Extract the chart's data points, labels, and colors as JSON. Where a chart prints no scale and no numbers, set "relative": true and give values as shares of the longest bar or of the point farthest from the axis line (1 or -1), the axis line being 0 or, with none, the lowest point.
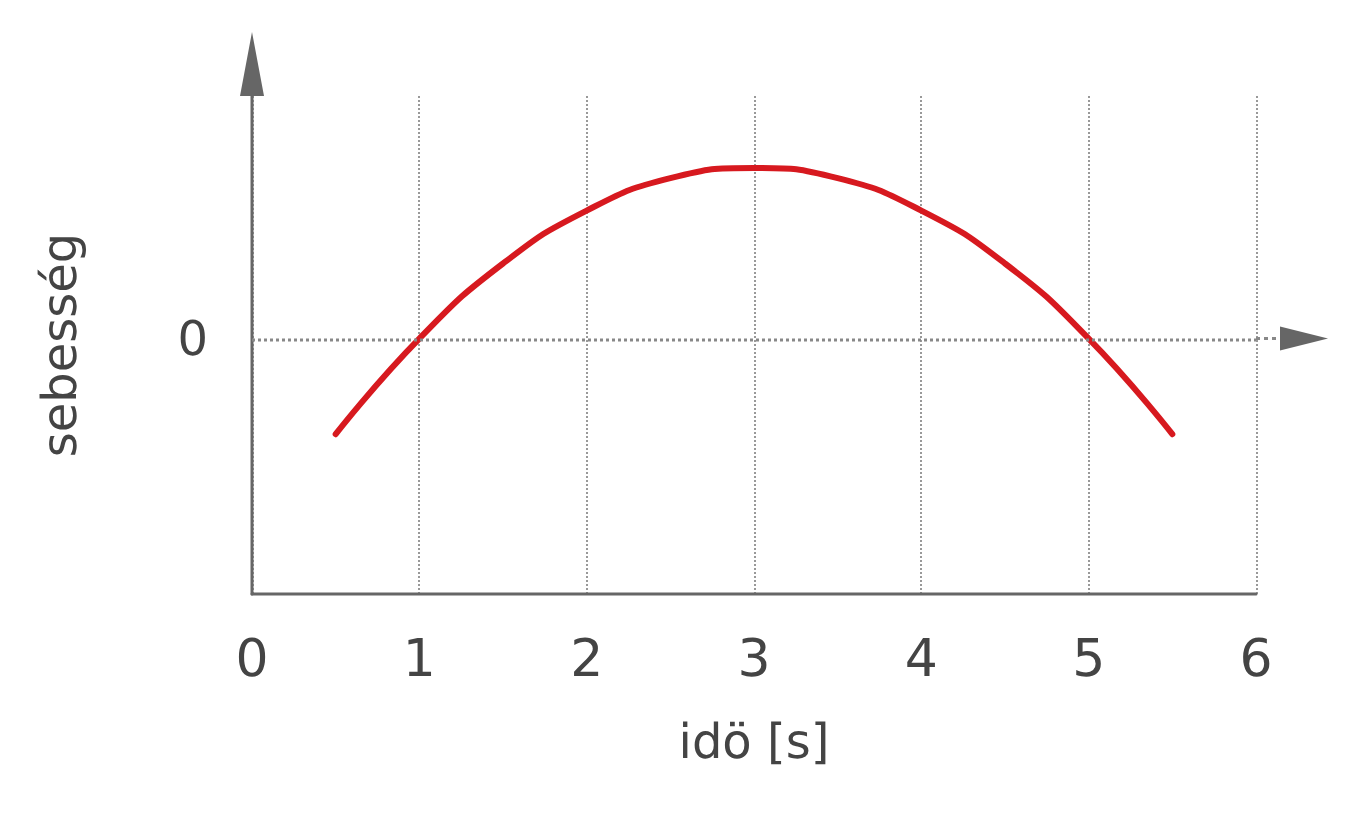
{
  "chart_data": {
    "type": "line",
    "relative": true,
    "xlabel": "idö [s]",
    "ylabel": "sebesség",
    "x": [
      0.5,
      1,
      1.5,
      2,
      2.5,
      3,
      3.5,
      4,
      4.5,
      5,
      5.5
    ],
    "series": [
      {
        "color": "#d7191f",
        "values": [
          -0.56,
          0,
          0.44,
          0.75,
          0.94,
          1,
          0.94,
          0.75,
          0.44,
          0,
          -0.56
        ]
      }
    ],
    "xlim": [
      0,
      6
    ],
    "xticks": [
      0,
      1,
      2,
      3,
      4,
      5,
      6
    ],
    "grid": "x",
    "marker": "none",
    "line_style": "solid",
    "ref_lines": [
      {
        "axis": "y",
        "value": 0,
        "label": "0",
        "color": "#888888",
        "line_style": "dotted"
      }
    ]
  }
}
